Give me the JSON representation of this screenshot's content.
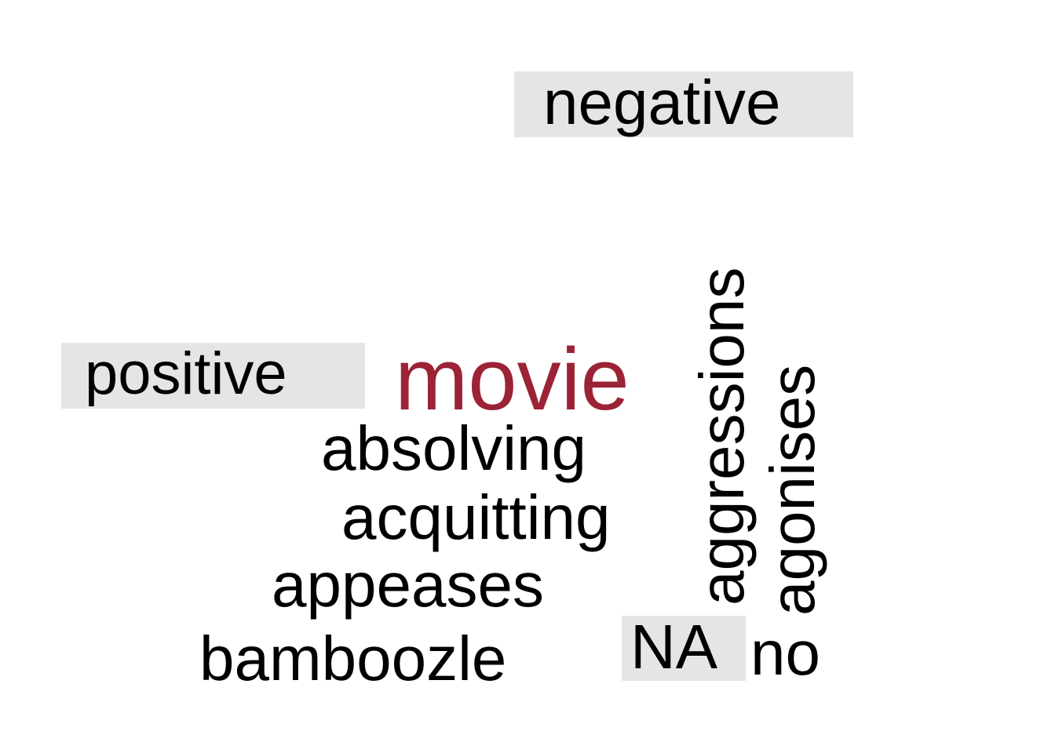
{
  "groups": {
    "negative": "negative",
    "positive": "positive",
    "na": "NA"
  },
  "words": {
    "movie": "movie",
    "absolving": "absolving",
    "acquitting": "acquitting",
    "appeases": "appeases",
    "bamboozle": "bamboozle",
    "aggressions": "aggressions",
    "agonises": "agonises",
    "no": "no"
  },
  "colors": {
    "highlight_word": "#9b2335",
    "word": "#000000",
    "label_background": "#e5e5e5"
  }
}
